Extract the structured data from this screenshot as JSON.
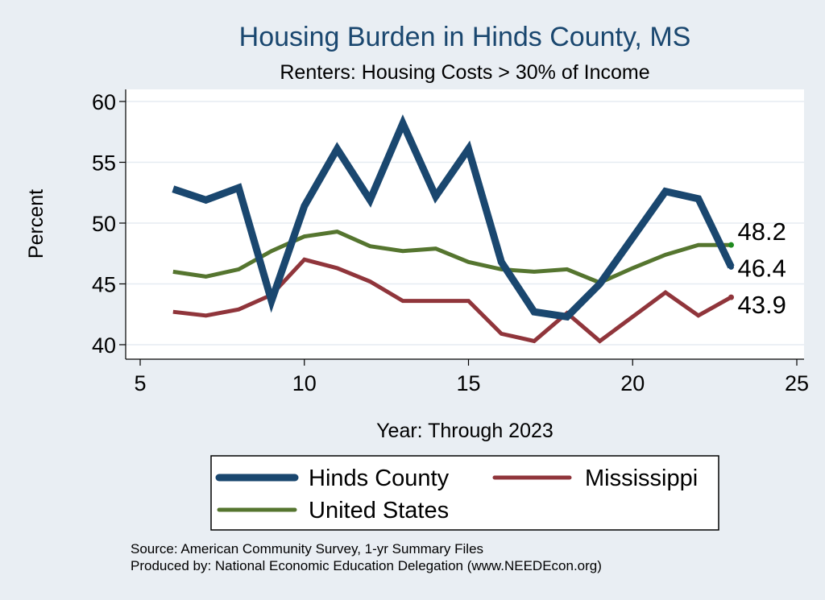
{
  "chart_data": {
    "type": "line",
    "title": "Housing Burden in Hinds County, MS",
    "subtitle": "Renters: Housing Costs > 30% of Income",
    "xlabel": "Year: Through 2023",
    "ylabel": "Percent",
    "xlim": [
      5,
      25
    ],
    "ylim": [
      40,
      60
    ],
    "x_ticks": [
      "5",
      "10",
      "15",
      "20",
      "25"
    ],
    "y_ticks": [
      "40",
      "45",
      "50",
      "55",
      "60"
    ],
    "grid": true,
    "legend_position": "bottom",
    "series": [
      {
        "name": "Hinds County",
        "color": "#1a476f",
        "x": [
          6,
          7,
          8,
          9,
          10,
          11,
          12,
          13,
          14,
          15,
          16,
          17,
          18,
          19,
          20,
          21,
          22,
          23
        ],
        "values": [
          52.8,
          51.9,
          52.9,
          43.6,
          51.4,
          56.1,
          51.9,
          58.2,
          52.2,
          56.1,
          46.8,
          42.7,
          42.3,
          45.0,
          48.8,
          52.6,
          52.0,
          46.4
        ]
      },
      {
        "name": "Mississippi",
        "color": "#90353b",
        "x": [
          6,
          7,
          8,
          9,
          10,
          11,
          12,
          13,
          14,
          15,
          16,
          17,
          18,
          19,
          20,
          21,
          22,
          23
        ],
        "values": [
          42.7,
          42.4,
          42.9,
          44.1,
          47.0,
          46.3,
          45.2,
          43.6,
          43.6,
          43.6,
          40.9,
          40.3,
          42.6,
          40.3,
          42.3,
          44.3,
          42.4,
          43.9
        ]
      },
      {
        "name": "United States",
        "color": "#55752f",
        "x": [
          6,
          7,
          8,
          9,
          10,
          11,
          12,
          13,
          14,
          15,
          16,
          17,
          18,
          19,
          20,
          21,
          22,
          23
        ],
        "values": [
          46.0,
          45.6,
          46.2,
          47.7,
          48.9,
          49.3,
          48.1,
          47.7,
          47.9,
          46.8,
          46.2,
          46.0,
          46.2,
          45.1,
          46.3,
          47.4,
          48.2,
          48.2
        ]
      }
    ],
    "end_labels": [
      {
        "series": "United States",
        "text": "48.2"
      },
      {
        "series": "Hinds County",
        "text": "46.4"
      },
      {
        "series": "Mississippi",
        "text": "43.9"
      }
    ],
    "notes": [
      "Source: American Community Survey, 1-yr Summary Files",
      "Produced by: National Economic Education Delegation (www.NEEDEcon.org)"
    ]
  },
  "colors": {
    "background": "#e9eef3",
    "plot_background": "#ffffff",
    "title": "#1a476f",
    "grid": "#e6ecf2",
    "end_marker": "#1f8a1f"
  }
}
